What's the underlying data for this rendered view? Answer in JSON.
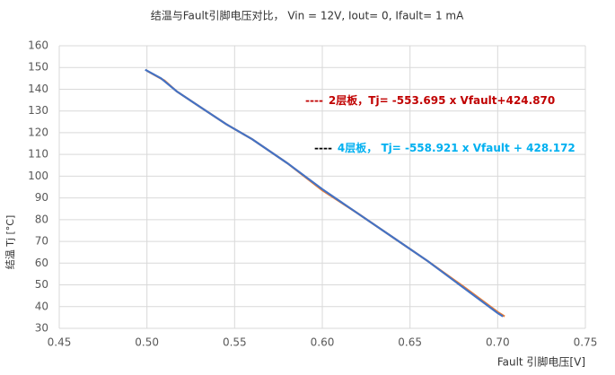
{
  "chart_data": {
    "type": "line",
    "title": "结温与Fault引脚电压对比，   Vin = 12V, Iout= 0, Ifault= 1 mA",
    "x_label": "Fault  引脚电压[V]",
    "y_label": "结温  Tj [°C]",
    "xlim": [
      0.45,
      0.75
    ],
    "ylim": [
      30,
      160
    ],
    "xticks": [
      0.45,
      {
        "value": 0.5,
        "label": "0.50"
      },
      0.55,
      {
        "value": 0.6,
        "label": "0.60"
      },
      0.65,
      {
        "value": 0.7,
        "label": "0.70"
      },
      0.75
    ],
    "yticks": [
      30,
      40,
      50,
      60,
      70,
      80,
      90,
      100,
      110,
      120,
      130,
      140,
      150,
      160
    ],
    "grid": true,
    "series": [
      {
        "name": "2层板",
        "color": "#ed7d31",
        "x": [
          0.5,
          0.51,
          0.517,
          0.53,
          0.545,
          0.56,
          0.58,
          0.6,
          0.62,
          0.64,
          0.66,
          0.68,
          0.7,
          0.704
        ],
        "values": [
          148.5,
          144,
          139,
          132,
          124,
          117,
          106,
          93.5,
          83,
          72,
          61,
          49.5,
          37.5,
          35.5
        ]
      },
      {
        "name": "4层板",
        "color": "#4472c4",
        "x": [
          0.499,
          0.508,
          0.517,
          0.53,
          0.545,
          0.56,
          0.58,
          0.6,
          0.62,
          0.64,
          0.66,
          0.68,
          0.7,
          0.703
        ],
        "values": [
          149,
          145,
          139,
          132,
          124,
          117,
          106,
          94,
          83,
          72,
          61,
          49,
          37,
          35.5
        ]
      }
    ],
    "annotations": [
      {
        "marker": "----",
        "marker_color": "#c00000",
        "text": "2层板，Tj= -553.695 x Vfault+424.870",
        "color": "#c00000"
      },
      {
        "marker": "----",
        "marker_color": "#000000",
        "text": "4层板，  Tj=  -558.921 x Vfault + 428.172",
        "color": "#00b0f0"
      }
    ]
  }
}
